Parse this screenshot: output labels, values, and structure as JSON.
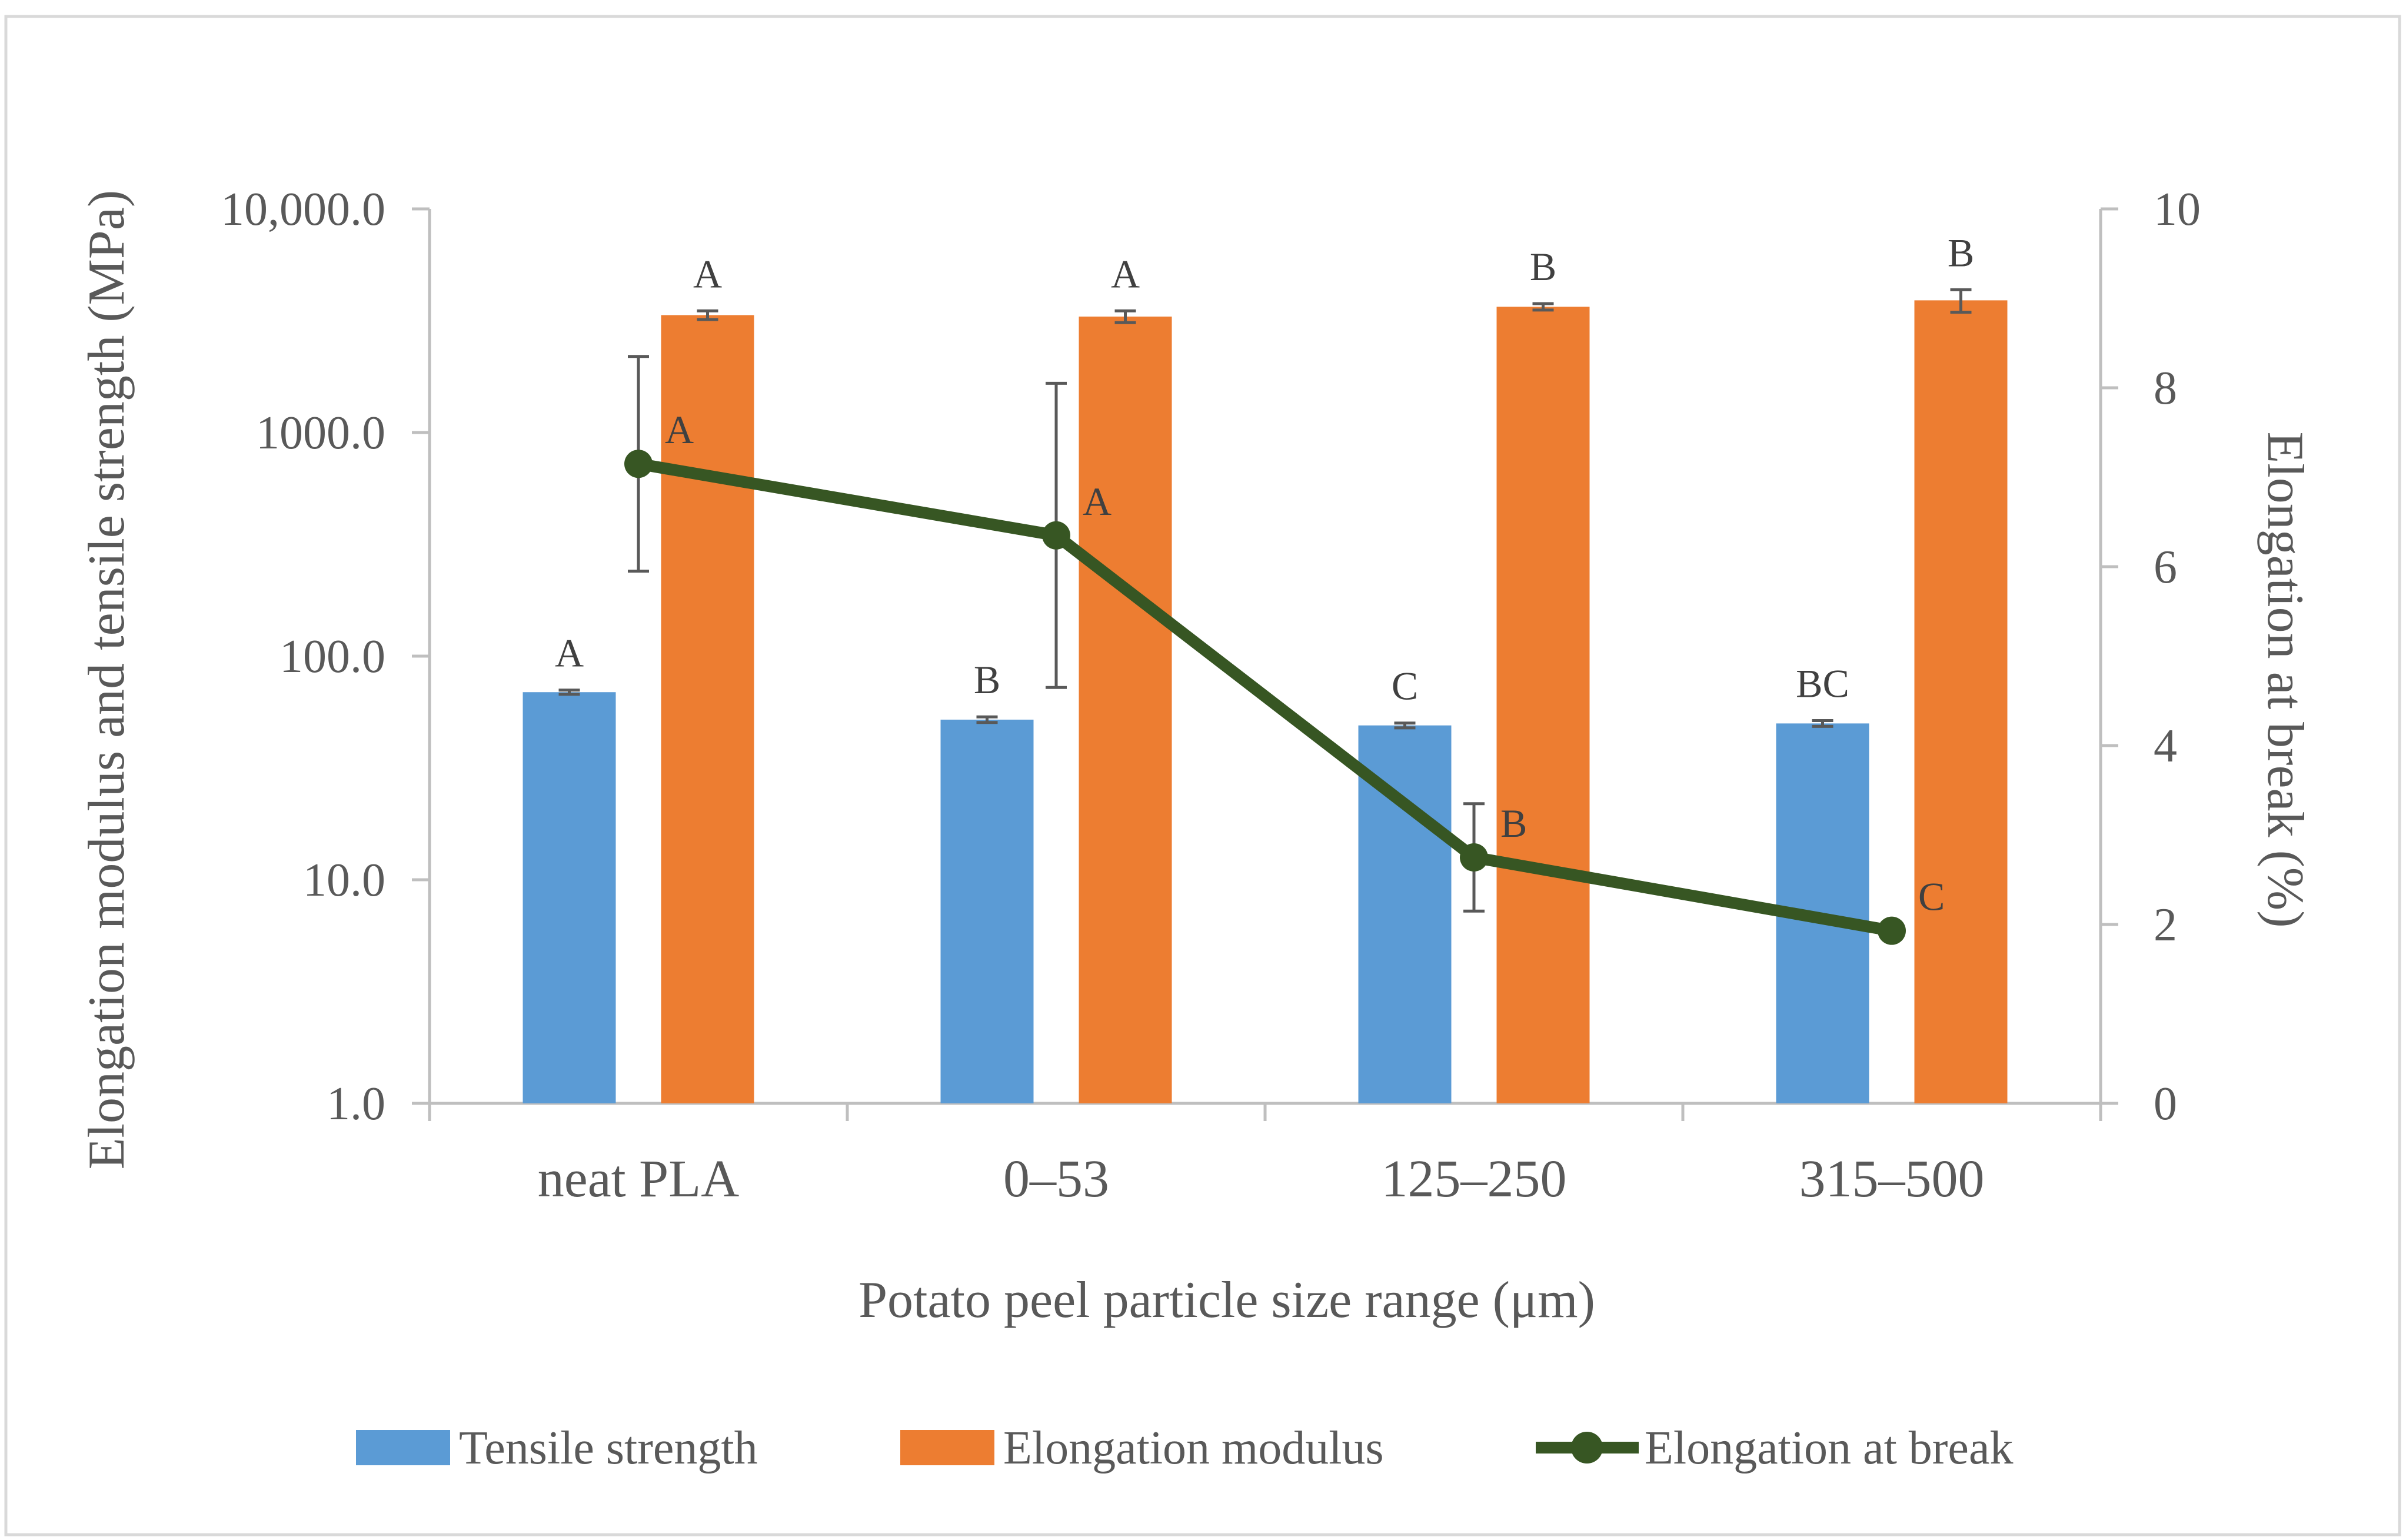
{
  "chart_data": {
    "type": "bar",
    "title": "",
    "xlabel": "Potato peel particle size range (μm)",
    "ylabel": "Elongation modulus and tensile strength (MPa)",
    "y2label": "Elongation at break (%)",
    "categories": [
      "neat PLA",
      "0–53",
      "125–250",
      "315–500"
    ],
    "y_scale": "log",
    "ylim": [
      1,
      10000
    ],
    "y_ticks": [
      "1.0",
      "10.0",
      "100.0",
      "1000.0",
      "10,000.0"
    ],
    "y2lim": [
      0,
      10
    ],
    "y2_ticks": [
      "0",
      "2",
      "4",
      "6",
      "8",
      "10"
    ],
    "grid": false,
    "legend_position": "bottom",
    "series": [
      {
        "name": "Tensile strength",
        "type": "bar",
        "axis": "left",
        "color": "#5b9bd5",
        "values": [
          69,
          52,
          49,
          50
        ],
        "errors": [
          1.5,
          1.5,
          1.2,
          1.5
        ],
        "letters": [
          "A",
          "B",
          "C",
          "BC"
        ]
      },
      {
        "name": "Elongation modulus",
        "type": "bar",
        "axis": "left",
        "color": "#ed7d31",
        "values": [
          3350,
          3300,
          3650,
          3900
        ],
        "errors": [
          150,
          200,
          120,
          450
        ],
        "letters": [
          "A",
          "A",
          "B",
          "B"
        ]
      },
      {
        "name": "Elongation at break",
        "type": "line",
        "axis": "right",
        "color": "#375623",
        "values": [
          7.15,
          6.35,
          2.75,
          1.93
        ],
        "errors": [
          1.2,
          1.7,
          0.6,
          0
        ],
        "letters": [
          "A",
          "A",
          "B",
          "C"
        ]
      }
    ]
  }
}
